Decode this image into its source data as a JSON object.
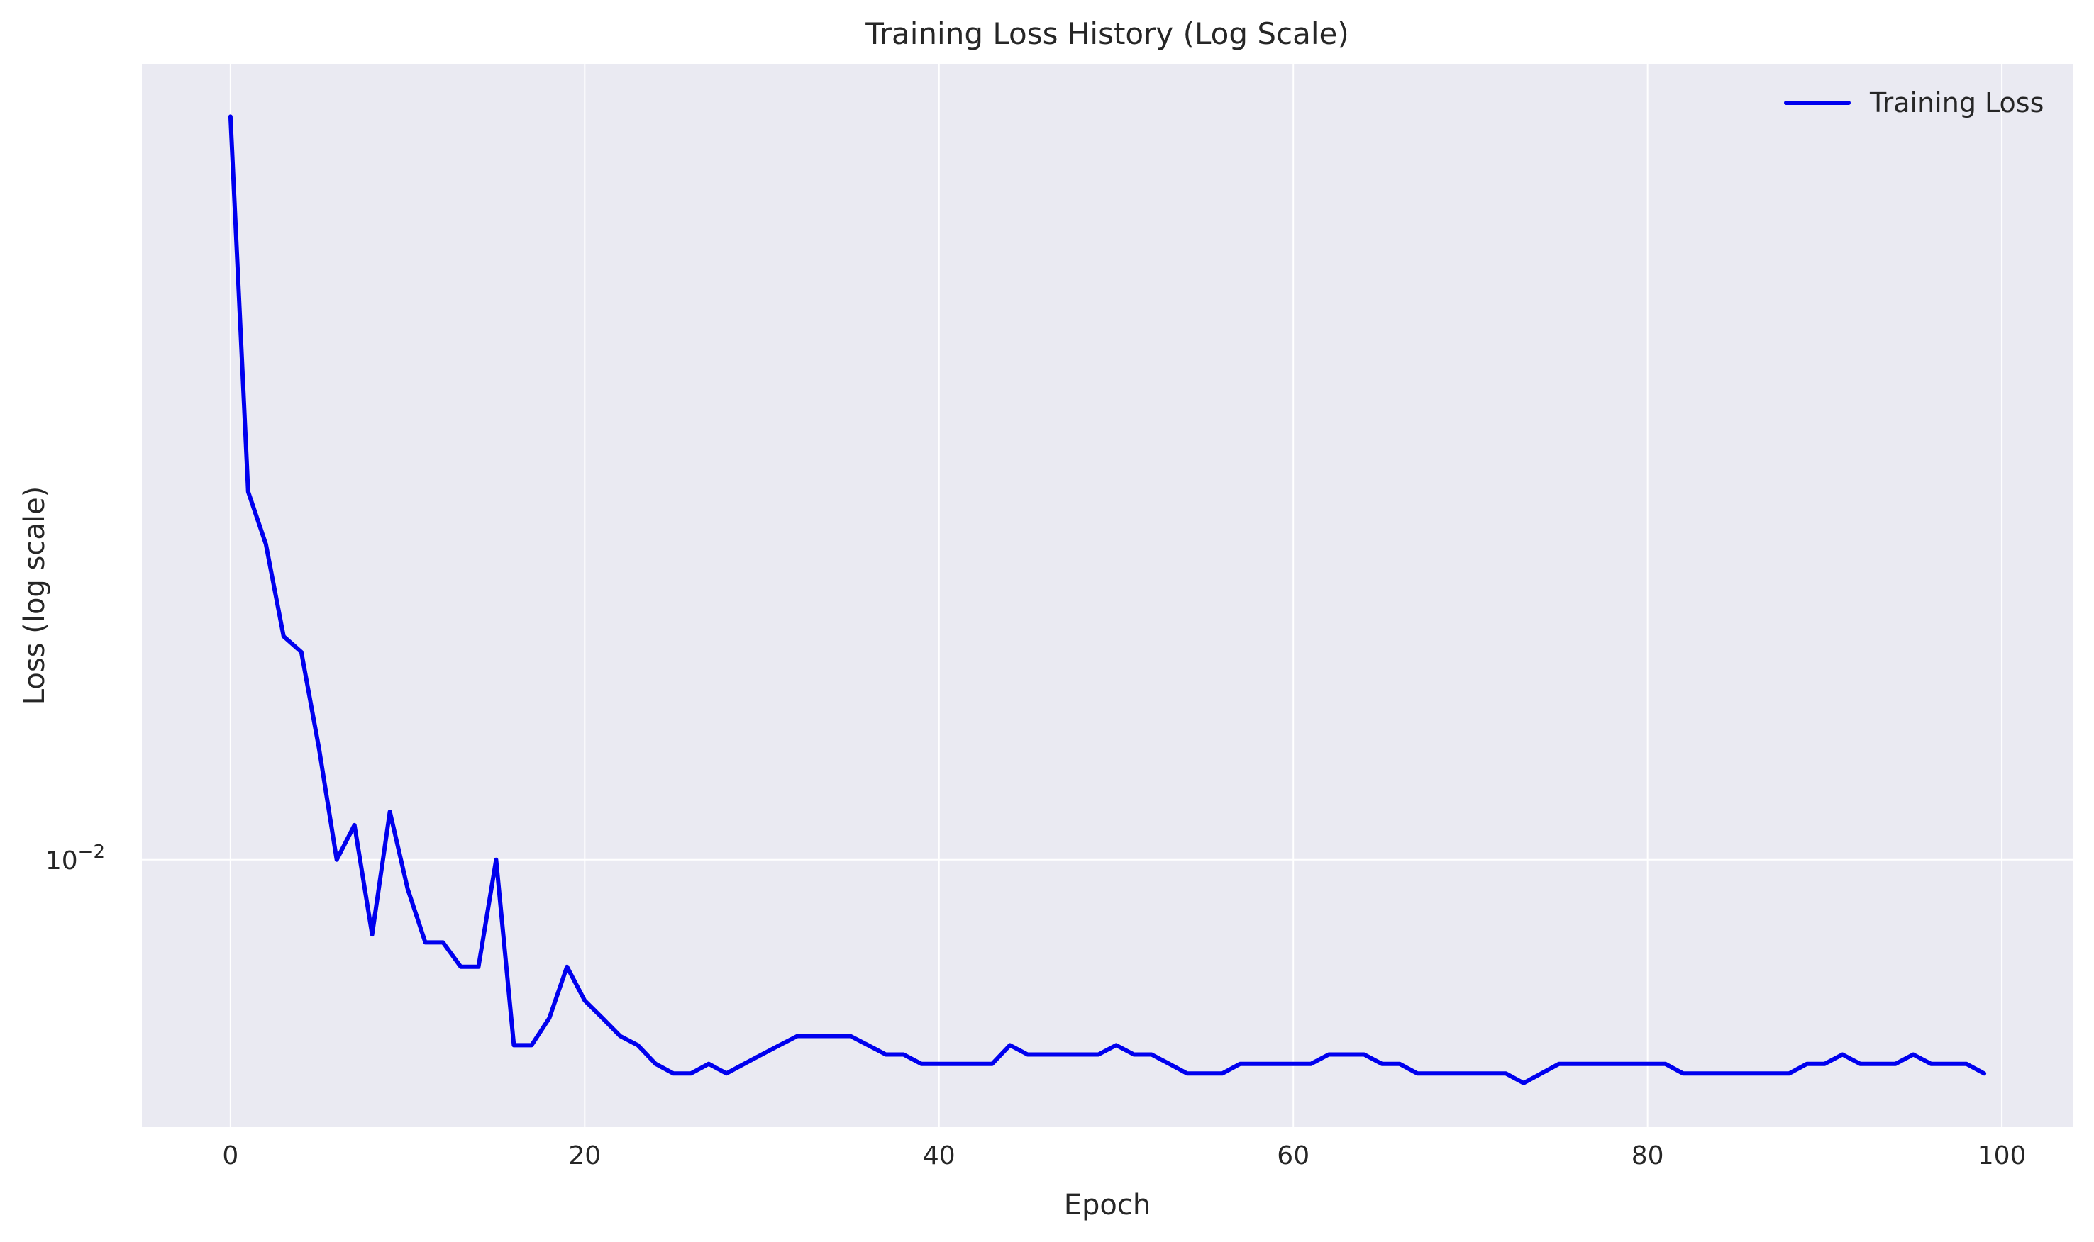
{
  "chart_data": {
    "type": "line",
    "title": "Training Loss History (Log Scale)",
    "xlabel": "Epoch",
    "ylabel": "Loss (log scale)",
    "x_scale": "linear",
    "y_scale": "log",
    "xlim": [
      -5,
      104
    ],
    "ylim": [
      0.00686,
      0.0307
    ],
    "x_ticks": [
      0,
      20,
      40,
      60,
      80,
      100
    ],
    "y_ticks": [
      0.01
    ],
    "y_tick_labels": [
      {
        "base": "10",
        "exp": "−2"
      }
    ],
    "grid": true,
    "legend": "top-right",
    "colors": {
      "plot_bg": "#eaeaf2",
      "grid": "#ffffff",
      "line": "#0000ee"
    },
    "series": [
      {
        "name": "Training Loss",
        "x": [
          0,
          1,
          2,
          3,
          4,
          5,
          6,
          7,
          8,
          9,
          10,
          11,
          12,
          13,
          14,
          15,
          16,
          17,
          18,
          19,
          20,
          21,
          22,
          23,
          24,
          25,
          26,
          27,
          28,
          29,
          30,
          31,
          32,
          33,
          34,
          35,
          36,
          37,
          38,
          39,
          40,
          41,
          42,
          43,
          44,
          45,
          46,
          47,
          48,
          49,
          50,
          51,
          52,
          53,
          54,
          55,
          56,
          57,
          58,
          59,
          60,
          61,
          62,
          63,
          64,
          65,
          66,
          67,
          68,
          69,
          70,
          71,
          72,
          73,
          74,
          75,
          76,
          77,
          78,
          79,
          80,
          81,
          82,
          83,
          84,
          85,
          86,
          87,
          88,
          89,
          90,
          91,
          92,
          93,
          94,
          95,
          96,
          97,
          98,
          99
        ],
        "values": [
          0.0285,
          0.0168,
          0.0156,
          0.0137,
          0.0134,
          0.0117,
          0.01,
          0.0105,
          0.009,
          0.0107,
          0.0096,
          0.0089,
          0.0089,
          0.0086,
          0.0086,
          0.01,
          0.0077,
          0.0077,
          0.008,
          0.0086,
          0.0082,
          0.008,
          0.0078,
          0.0077,
          0.0075,
          0.0074,
          0.0074,
          0.0075,
          0.0074,
          0.0075,
          0.0076,
          0.0077,
          0.0078,
          0.0078,
          0.0078,
          0.0078,
          0.0077,
          0.0076,
          0.0076,
          0.0075,
          0.0075,
          0.0075,
          0.0075,
          0.0075,
          0.0077,
          0.0076,
          0.0076,
          0.0076,
          0.0076,
          0.0076,
          0.0077,
          0.0076,
          0.0076,
          0.0075,
          0.0074,
          0.0074,
          0.0074,
          0.0075,
          0.0075,
          0.0075,
          0.0075,
          0.0075,
          0.0076,
          0.0076,
          0.0076,
          0.0075,
          0.0075,
          0.0074,
          0.0074,
          0.0074,
          0.0074,
          0.0074,
          0.0074,
          0.0073,
          0.0074,
          0.0075,
          0.0075,
          0.0075,
          0.0075,
          0.0075,
          0.0075,
          0.0075,
          0.0074,
          0.0074,
          0.0074,
          0.0074,
          0.0074,
          0.0074,
          0.0074,
          0.0075,
          0.0075,
          0.0076,
          0.0075,
          0.0075,
          0.0075,
          0.0076,
          0.0075,
          0.0075,
          0.0075,
          0.0074
        ]
      }
    ]
  }
}
